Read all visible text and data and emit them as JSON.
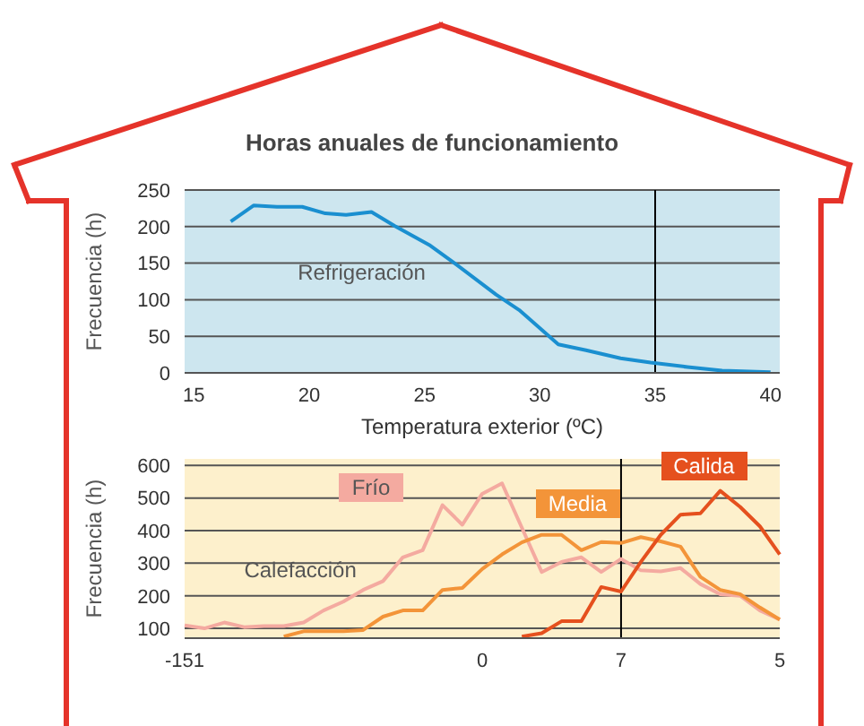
{
  "chart_data": [
    {
      "type": "line",
      "title": "Horas anuales de funcionamiento",
      "xlabel": "Temperatura exterior (ºC)",
      "ylabel": "Frecuencia (h)",
      "annotations": [
        "Refrigeración"
      ],
      "grid": "y",
      "legend": false,
      "marker": "none",
      "xlim": [
        14.6,
        40.4
      ],
      "xticks": [
        15,
        20,
        25,
        30,
        35,
        40
      ],
      "ylim": [
        0,
        250
      ],
      "yticks": [
        0,
        50,
        100,
        150,
        200,
        250
      ],
      "ref_lines": [
        {
          "axis": "x",
          "value": 35,
          "color": "#000000"
        }
      ],
      "series": [
        {
          "color": "#1a8fd0",
          "x": [
            16.6,
            17.6,
            18.6,
            19.7,
            20.7,
            21.6,
            22.7,
            23.7,
            25.2,
            26.3,
            28.1,
            29.1,
            30.8,
            32,
            33.5,
            34.8,
            36.4,
            37.9,
            40
          ],
          "values": [
            207,
            229,
            227,
            227,
            218,
            216,
            220,
            201,
            175,
            150,
            107,
            86,
            39,
            31,
            20,
            14,
            8,
            3,
            1
          ]
        }
      ]
    },
    {
      "type": "line",
      "ylabel": "Frecuencia (h)",
      "annotations": [
        "Calefacción"
      ],
      "grid": "y",
      "legend": false,
      "marker": "none",
      "categories": [
        "-151",
        null,
        null,
        null,
        null,
        null,
        null,
        null,
        null,
        null,
        null,
        null,
        null,
        null,
        null,
        "0",
        null,
        null,
        null,
        null,
        null,
        null,
        "7",
        null,
        null,
        null,
        null,
        null,
        null,
        null,
        "5"
      ],
      "ylim": [
        70,
        620
      ],
      "yticks": [
        100,
        200,
        300,
        400,
        500,
        600
      ],
      "ref_lines": [
        {
          "axis": "x",
          "value": "7",
          "color": "#000000"
        }
      ],
      "series": [
        {
          "name": "Frío",
          "color": "#f4aaa0",
          "values": [
            109,
            100,
            118,
            104,
            107,
            107,
            118,
            155,
            182,
            218,
            245,
            318,
            340,
            478,
            418,
            513,
            545,
            409,
            273,
            304,
            318,
            273,
            313,
            278,
            275,
            285,
            236,
            205,
            200,
            155,
            127
          ]
        },
        {
          "name": "Media",
          "color": "#f39439",
          "values": [
            null,
            null,
            null,
            null,
            null,
            75,
            91,
            91,
            91,
            95,
            136,
            155,
            155,
            218,
            224,
            282,
            327,
            364,
            387,
            387,
            340,
            365,
            362,
            380,
            367,
            351,
            258,
            218,
            205,
            164,
            127
          ]
        },
        {
          "name": "Calida",
          "color": "#e5501e",
          "values": [
            null,
            null,
            null,
            null,
            null,
            null,
            null,
            null,
            null,
            null,
            null,
            null,
            null,
            null,
            null,
            null,
            null,
            75,
            85,
            122,
            122,
            227,
            213,
            304,
            387,
            449,
            453,
            522,
            473,
            413,
            327
          ]
        }
      ]
    }
  ]
}
